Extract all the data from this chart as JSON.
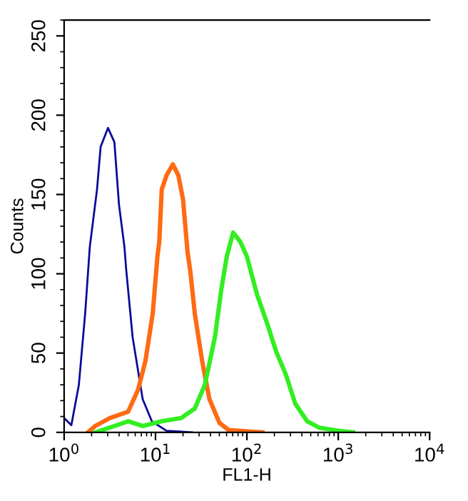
{
  "chart_data": {
    "type": "line",
    "xlabel": "FL1-H",
    "ylabel": "Counts",
    "log": "x",
    "grid": false,
    "legend": false,
    "xlim": [
      1,
      10000
    ],
    "xticks": [
      {
        "value": 1,
        "label": "10$^{0}$"
      },
      {
        "value": 10,
        "label": "10$^{1}$"
      },
      {
        "value": 100,
        "label": "10$^{2}$"
      },
      {
        "value": 1000,
        "label": "10$^{3}$"
      },
      {
        "value": 10000,
        "label": "10$^{4}$"
      }
    ],
    "ylim": [
      0,
      260
    ],
    "yticks": [
      0,
      50,
      100,
      150,
      200,
      250
    ],
    "series": [
      {
        "color": "#0a0a9a",
        "x": [
          1.0,
          1.2,
          1.45,
          1.7,
          1.91,
          2.29,
          2.51,
          3.02,
          3.55,
          3.98,
          4.57,
          4.79,
          5.62,
          7.24,
          9.12,
          13.2,
          25.1
        ],
        "values": [
          9,
          4.5,
          30,
          75,
          117,
          153,
          180,
          192,
          183,
          144,
          117,
          102,
          60,
          21,
          7,
          1,
          0
        ]
      },
      {
        "color": "#ff6a13",
        "x": [
          1.82,
          2.19,
          3.16,
          5.01,
          6.46,
          7.76,
          9.33,
          10.5,
          11.0,
          11.7,
          13.2,
          15.5,
          17.8,
          20.0,
          22.4,
          24.0,
          26.9,
          32.4,
          38.9,
          50.1,
          63.1,
          148
        ],
        "values": [
          0,
          4,
          9,
          13,
          27,
          45,
          75,
          111,
          120,
          153,
          162,
          169,
          162,
          147,
          114,
          102,
          75,
          45,
          21,
          6,
          1.5,
          0
        ]
      },
      {
        "color": "#33ee22",
        "x": [
          2.19,
          3.16,
          5.01,
          7.24,
          11.7,
          19.1,
          26.9,
          34.7,
          44.7,
          52.5,
          60.3,
          70.8,
          85.1,
          100,
          129,
          166,
          209,
          269,
          339,
          457,
          617,
          1000,
          1450
        ],
        "values": [
          0,
          3,
          7,
          4,
          7,
          9,
          15,
          30,
          60,
          90,
          111,
          126,
          120,
          111,
          87,
          69,
          51,
          36,
          18,
          7,
          3,
          1,
          0
        ]
      }
    ]
  }
}
